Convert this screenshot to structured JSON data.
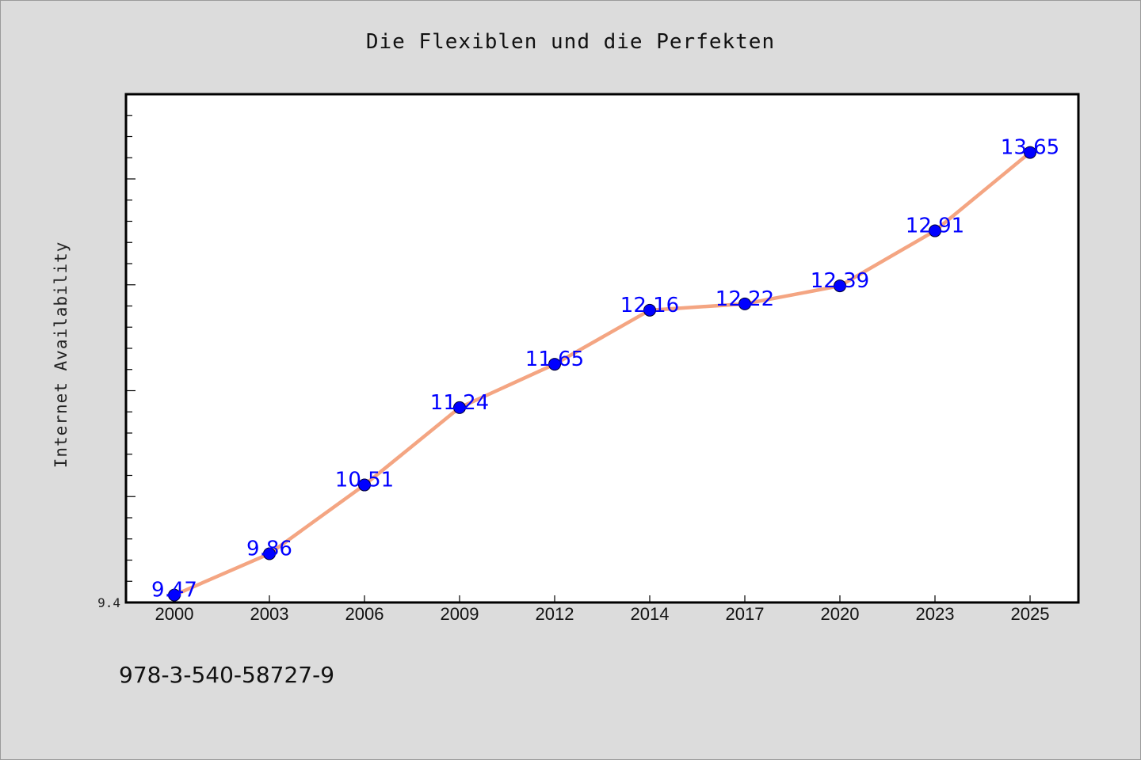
{
  "chart_data": {
    "type": "line",
    "title": "Die Flexiblen und die Perfekten",
    "xlabel": "",
    "ylabel": "Internet Availability",
    "categories": [
      "2000",
      "2003",
      "2006",
      "2009",
      "2012",
      "2014",
      "2017",
      "2020",
      "2023",
      "2025"
    ],
    "x": [
      2000,
      2003,
      2006,
      2009,
      2012,
      2014,
      2017,
      2020,
      2023,
      2025
    ],
    "values": [
      9.47,
      9.86,
      10.51,
      11.24,
      11.65,
      12.16,
      12.22,
      12.39,
      12.91,
      13.65
    ],
    "data_labels": [
      "9.47",
      "9.86",
      "10.51",
      "11.24",
      "11.65",
      "12.16",
      "12.22",
      "12.39",
      "12.91",
      "13.65"
    ],
    "ylim": [
      9.4,
      14.2
    ],
    "ytick_labels": [
      "9.4"
    ],
    "grid": false,
    "legend": "none",
    "line_color": "#f4a582",
    "marker_color": "#0000ff",
    "label_color": "#0000ff"
  },
  "footer": {
    "isbn": "978-3-540-58727-9"
  }
}
